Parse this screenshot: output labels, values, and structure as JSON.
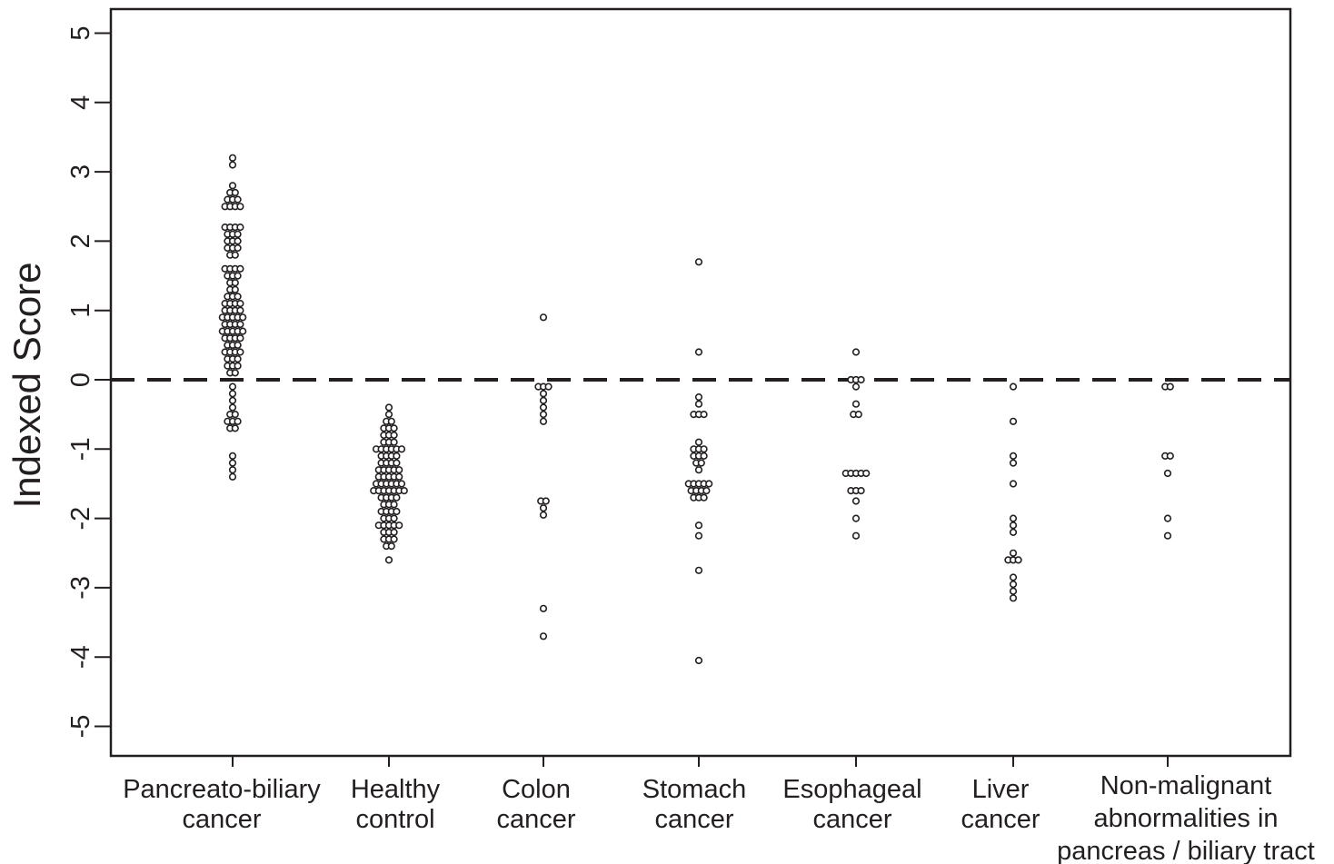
{
  "chart_data": {
    "type": "scatter",
    "ylabel": "Indexed Score",
    "xlabel": "",
    "ylim": [
      -5.4,
      5.4
    ],
    "yticks": [
      -5,
      -4,
      -3,
      -2,
      -1,
      0,
      1,
      2,
      3,
      4,
      5
    ],
    "reference_line": 0,
    "categories": [
      {
        "label_lines": [
          "Pancreato-biliary",
          "cancer"
        ]
      },
      {
        "label_lines": [
          "Healthy",
          "control"
        ]
      },
      {
        "label_lines": [
          "Colon",
          "cancer"
        ]
      },
      {
        "label_lines": [
          "Stomach",
          "cancer"
        ]
      },
      {
        "label_lines": [
          "Esophageal",
          "cancer"
        ]
      },
      {
        "label_lines": [
          "Liver",
          "cancer"
        ]
      },
      {
        "label_lines": [
          "Non-malignant",
          "abnormalities in",
          "pancreas / biliary tract"
        ]
      }
    ],
    "groups": [
      {
        "points": [
          {
            "y": 3.2,
            "n": 1
          },
          {
            "y": 3.1,
            "n": 1
          },
          {
            "y": 2.8,
            "n": 1
          },
          {
            "y": 2.7,
            "n": 2
          },
          {
            "y": 2.6,
            "n": 3
          },
          {
            "y": 2.5,
            "n": 4
          },
          {
            "y": 2.2,
            "n": 4
          },
          {
            "y": 2.1,
            "n": 3
          },
          {
            "y": 2.0,
            "n": 3
          },
          {
            "y": 1.9,
            "n": 3
          },
          {
            "y": 1.8,
            "n": 2
          },
          {
            "y": 1.6,
            "n": 4
          },
          {
            "y": 1.5,
            "n": 3
          },
          {
            "y": 1.4,
            "n": 2
          },
          {
            "y": 1.3,
            "n": 2
          },
          {
            "y": 1.2,
            "n": 3
          },
          {
            "y": 1.1,
            "n": 4
          },
          {
            "y": 1.0,
            "n": 4
          },
          {
            "y": 0.9,
            "n": 5
          },
          {
            "y": 0.8,
            "n": 4
          },
          {
            "y": 0.7,
            "n": 5
          },
          {
            "y": 0.6,
            "n": 4
          },
          {
            "y": 0.5,
            "n": 3
          },
          {
            "y": 0.4,
            "n": 4
          },
          {
            "y": 0.3,
            "n": 3
          },
          {
            "y": 0.2,
            "n": 3
          },
          {
            "y": 0.1,
            "n": 2
          },
          {
            "y": -0.1,
            "n": 1
          },
          {
            "y": -0.2,
            "n": 1
          },
          {
            "y": -0.3,
            "n": 1
          },
          {
            "y": -0.4,
            "n": 1
          },
          {
            "y": -0.5,
            "n": 2
          },
          {
            "y": -0.6,
            "n": 3
          },
          {
            "y": -0.7,
            "n": 2
          },
          {
            "y": -1.1,
            "n": 1
          },
          {
            "y": -1.2,
            "n": 1
          },
          {
            "y": -1.3,
            "n": 1
          },
          {
            "y": -1.4,
            "n": 1
          }
        ]
      },
      {
        "points": [
          {
            "y": -0.4,
            "n": 1
          },
          {
            "y": -0.5,
            "n": 1
          },
          {
            "y": -0.6,
            "n": 2
          },
          {
            "y": -0.7,
            "n": 3
          },
          {
            "y": -0.8,
            "n": 3
          },
          {
            "y": -0.9,
            "n": 3
          },
          {
            "y": -1.0,
            "n": 6
          },
          {
            "y": -1.1,
            "n": 4
          },
          {
            "y": -1.2,
            "n": 4
          },
          {
            "y": -1.3,
            "n": 5
          },
          {
            "y": -1.4,
            "n": 5
          },
          {
            "y": -1.5,
            "n": 6
          },
          {
            "y": -1.6,
            "n": 7
          },
          {
            "y": -1.7,
            "n": 4
          },
          {
            "y": -1.8,
            "n": 3
          },
          {
            "y": -1.9,
            "n": 4
          },
          {
            "y": -2.0,
            "n": 3
          },
          {
            "y": -2.1,
            "n": 5
          },
          {
            "y": -2.2,
            "n": 3
          },
          {
            "y": -2.3,
            "n": 3
          },
          {
            "y": -2.4,
            "n": 2
          },
          {
            "y": -2.6,
            "n": 1
          }
        ]
      },
      {
        "points": [
          {
            "y": 0.9,
            "n": 1
          },
          {
            "y": -0.1,
            "n": 3
          },
          {
            "y": -0.2,
            "n": 1
          },
          {
            "y": -0.3,
            "n": 1
          },
          {
            "y": -0.4,
            "n": 1
          },
          {
            "y": -0.5,
            "n": 1
          },
          {
            "y": -0.6,
            "n": 1
          },
          {
            "y": -1.75,
            "n": 2
          },
          {
            "y": -1.85,
            "n": 1
          },
          {
            "y": -1.95,
            "n": 1
          },
          {
            "y": -3.3,
            "n": 1
          },
          {
            "y": -3.7,
            "n": 1
          }
        ]
      },
      {
        "points": [
          {
            "y": 1.7,
            "n": 1
          },
          {
            "y": 0.4,
            "n": 1
          },
          {
            "y": -0.25,
            "n": 1
          },
          {
            "y": -0.35,
            "n": 1
          },
          {
            "y": -0.5,
            "n": 3
          },
          {
            "y": -0.9,
            "n": 1
          },
          {
            "y": -1.0,
            "n": 3
          },
          {
            "y": -1.1,
            "n": 3
          },
          {
            "y": -1.2,
            "n": 2
          },
          {
            "y": -1.3,
            "n": 1
          },
          {
            "y": -1.5,
            "n": 5
          },
          {
            "y": -1.6,
            "n": 4
          },
          {
            "y": -1.7,
            "n": 3
          },
          {
            "y": -2.1,
            "n": 1
          },
          {
            "y": -2.25,
            "n": 1
          },
          {
            "y": -2.75,
            "n": 1
          },
          {
            "y": -4.05,
            "n": 1
          }
        ]
      },
      {
        "points": [
          {
            "y": 0.4,
            "n": 1
          },
          {
            "y": 0.0,
            "n": 3
          },
          {
            "y": -0.1,
            "n": 1
          },
          {
            "y": -0.35,
            "n": 1
          },
          {
            "y": -0.5,
            "n": 2
          },
          {
            "y": -1.35,
            "n": 5
          },
          {
            "y": -1.6,
            "n": 3
          },
          {
            "y": -1.75,
            "n": 1
          },
          {
            "y": -2.0,
            "n": 1
          },
          {
            "y": -2.25,
            "n": 1
          }
        ]
      },
      {
        "points": [
          {
            "y": -0.1,
            "n": 1
          },
          {
            "y": -0.6,
            "n": 1
          },
          {
            "y": -1.1,
            "n": 1
          },
          {
            "y": -1.2,
            "n": 1
          },
          {
            "y": -1.5,
            "n": 1
          },
          {
            "y": -2.0,
            "n": 1
          },
          {
            "y": -2.1,
            "n": 1
          },
          {
            "y": -2.2,
            "n": 1
          },
          {
            "y": -2.5,
            "n": 1
          },
          {
            "y": -2.6,
            "n": 3
          },
          {
            "y": -2.85,
            "n": 1
          },
          {
            "y": -2.95,
            "n": 1
          },
          {
            "y": -3.05,
            "n": 1
          },
          {
            "y": -3.15,
            "n": 1
          }
        ]
      },
      {
        "points": [
          {
            "y": -0.1,
            "n": 2
          },
          {
            "y": -1.1,
            "n": 2
          },
          {
            "y": -1.35,
            "n": 1
          },
          {
            "y": -2.0,
            "n": 1
          },
          {
            "y": -2.25,
            "n": 1
          }
        ]
      }
    ]
  }
}
